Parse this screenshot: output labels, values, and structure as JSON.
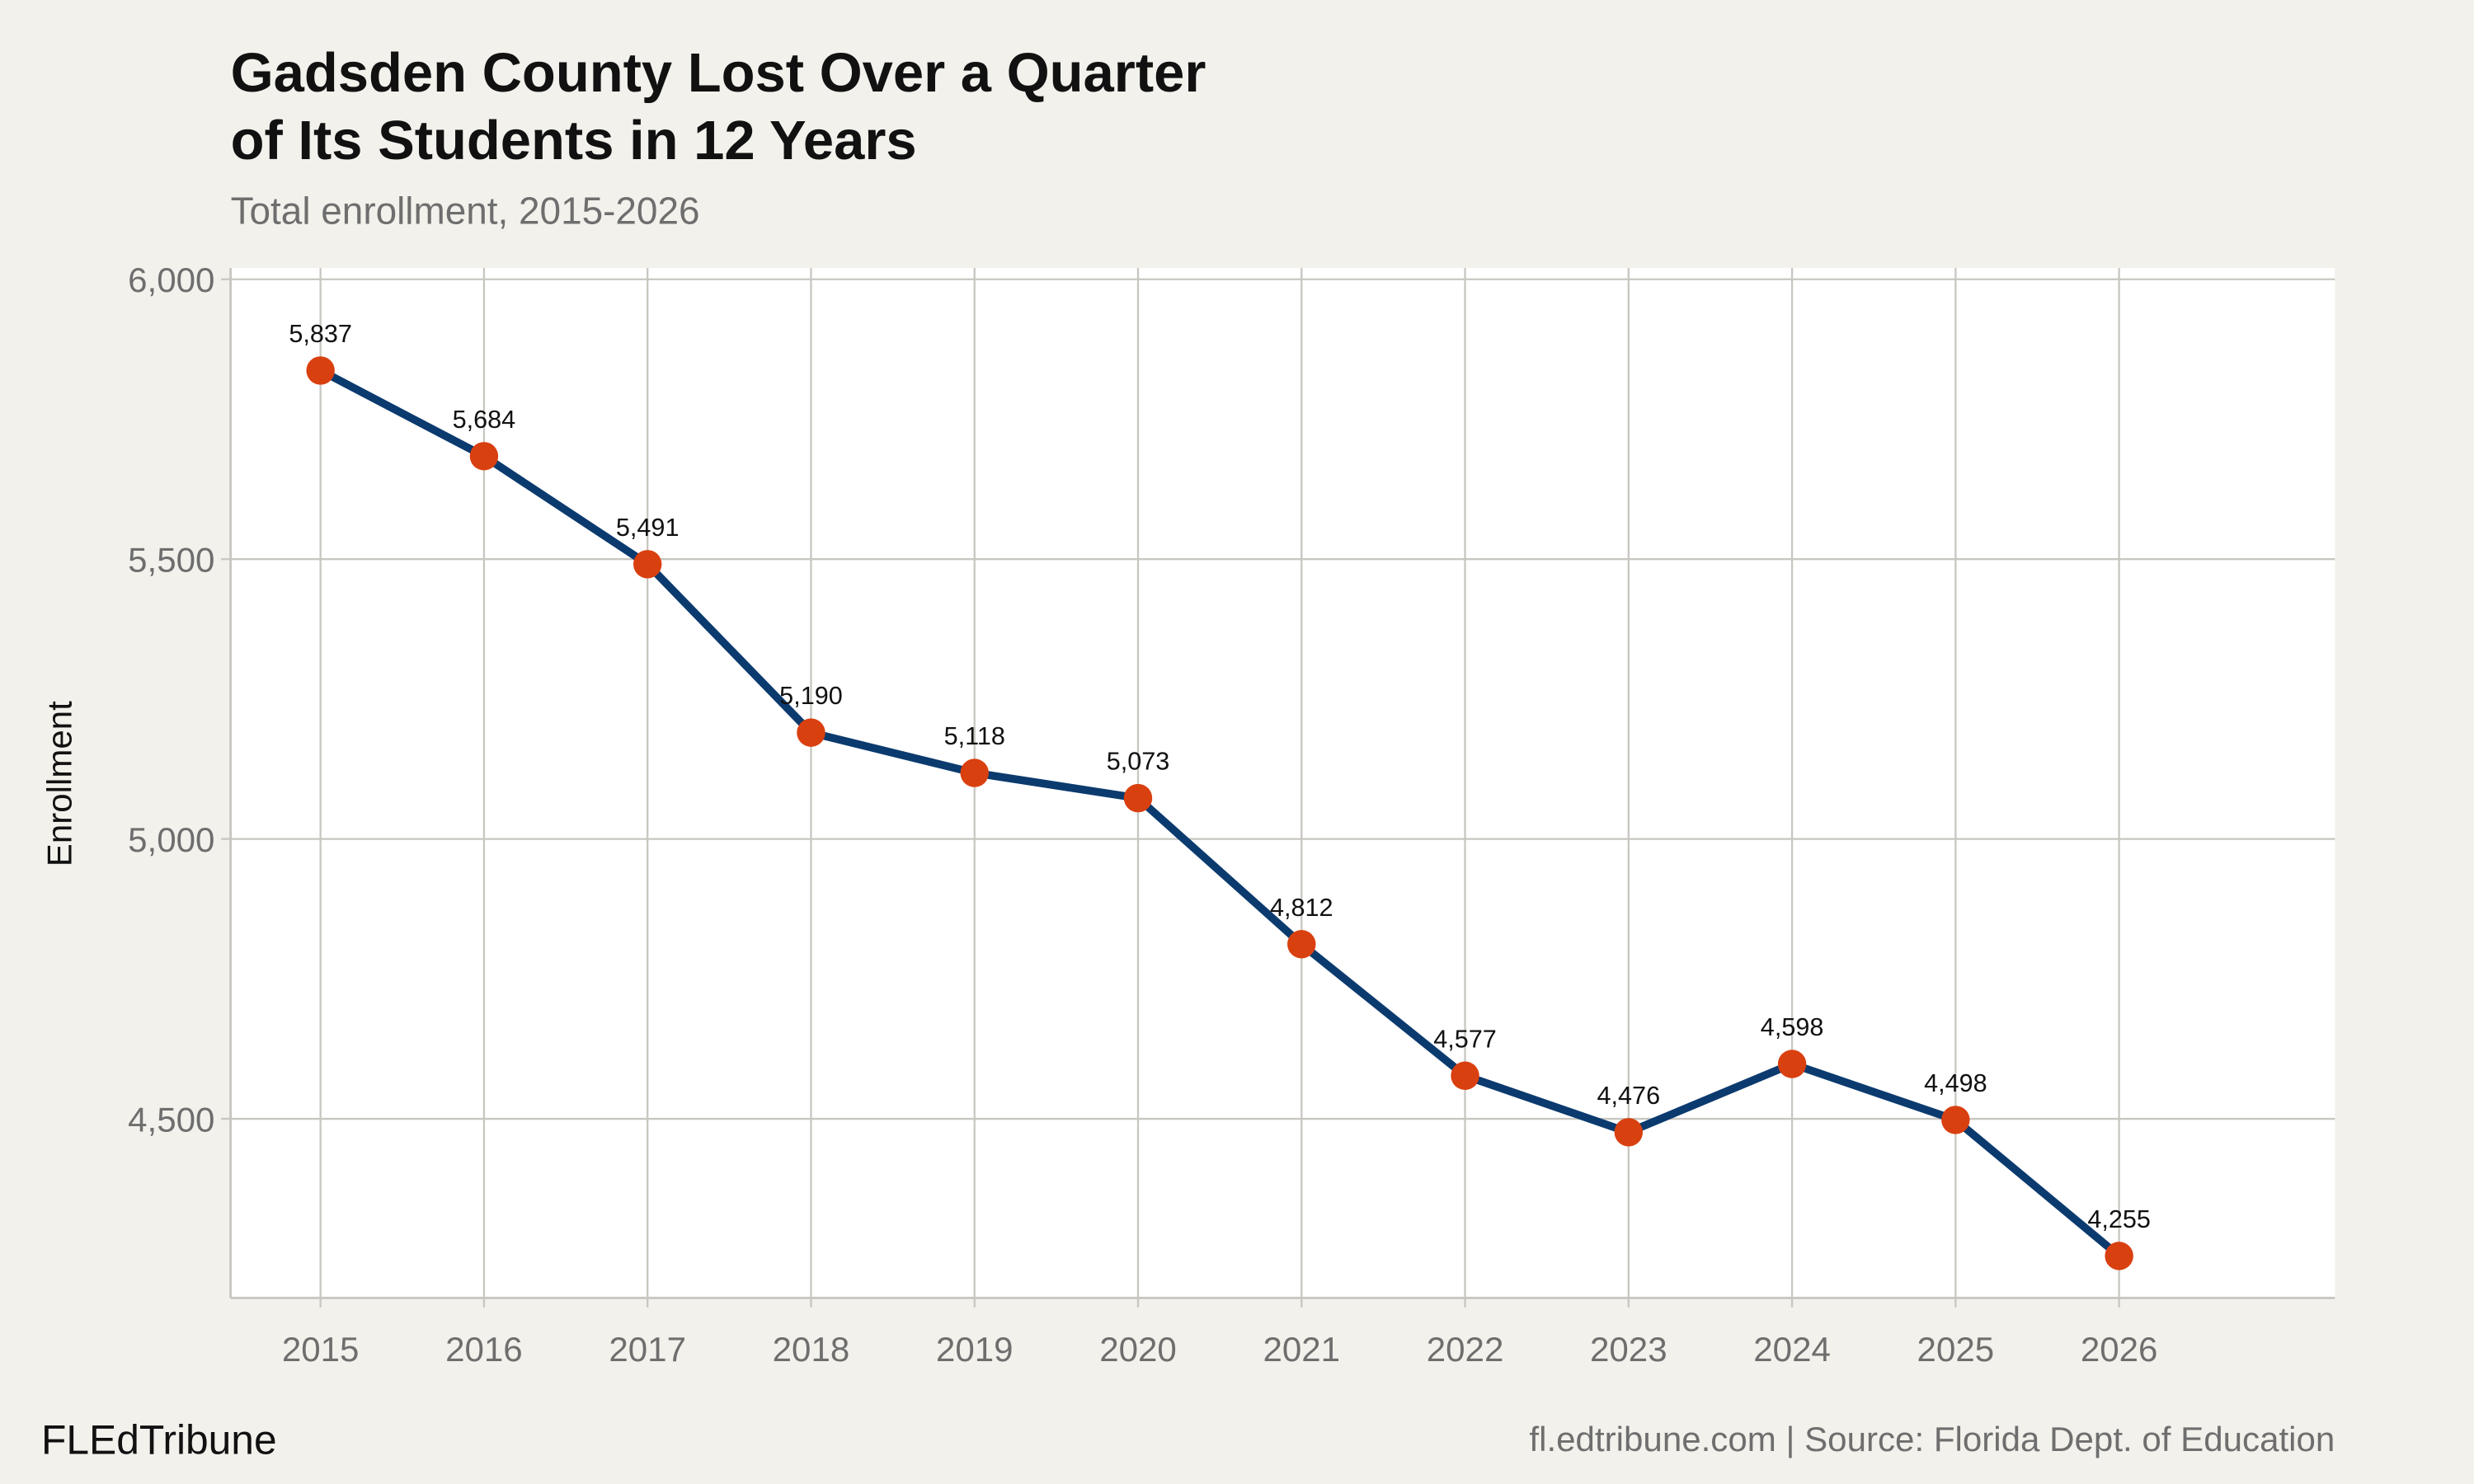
{
  "chart_data": {
    "type": "line",
    "title": [
      "Gadsden County Lost Over a Quarter",
      "of Its Students in 12 Years"
    ],
    "subtitle": "Total enrollment, 2015-2026",
    "y_label": "Enrollment",
    "brand": "FLEdTribune",
    "source": "fl.edtribune.com | Source: Florida Dept. of Education",
    "x": [
      2015,
      2016,
      2017,
      2018,
      2019,
      2020,
      2021,
      2022,
      2023,
      2024,
      2025,
      2026
    ],
    "series": [
      {
        "name": "Enrollment",
        "line_color": "#0b3a6e",
        "color": "#d9400f",
        "values": [
          5837,
          5684,
          5491,
          5190,
          5118,
          5073,
          4812,
          4577,
          4476,
          4598,
          4498,
          4255
        ],
        "value_labels": [
          "5,837",
          "5,684",
          "5,491",
          "5,190",
          "5,118",
          "5,073",
          "4,812",
          "4,577",
          "4,476",
          "4,598",
          "4,498",
          "4,255"
        ]
      }
    ],
    "xlim": [
      2014.45,
      2027.32
    ],
    "xticks": [
      2015,
      2016,
      2017,
      2018,
      2019,
      2020,
      2021,
      2022,
      2023,
      2024,
      2025,
      2026
    ],
    "ylim": [
      4180,
      6020
    ],
    "yticks": [
      {
        "value": 4500,
        "label": "4,500"
      },
      {
        "value": 5000,
        "label": "5,000"
      },
      {
        "value": 5500,
        "label": "5,500"
      },
      {
        "value": 6000,
        "label": "6,000"
      }
    ],
    "grid": true
  }
}
